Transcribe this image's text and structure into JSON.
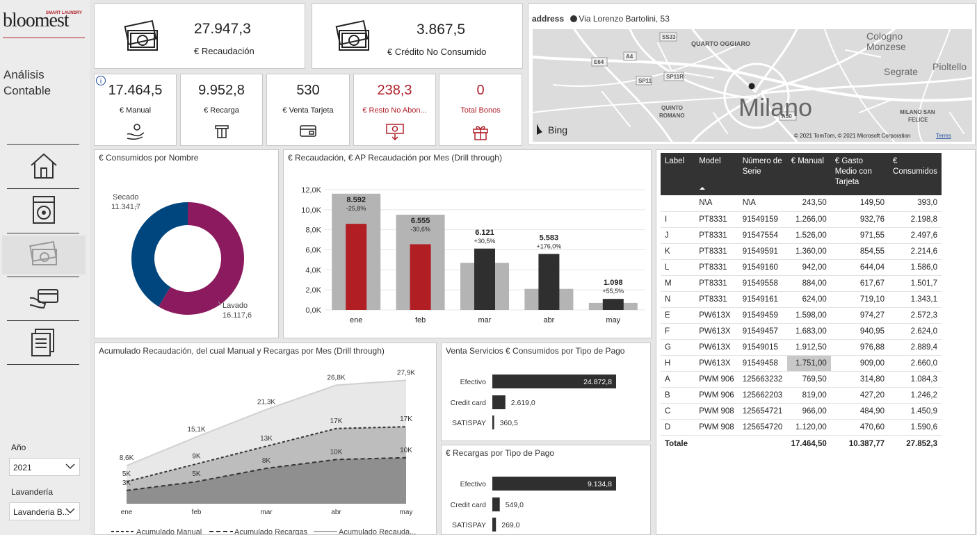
{
  "brand": {
    "name": "bloomest",
    "tagline": "SMART LAUNDRY"
  },
  "app_title": [
    "Análisis",
    "Contable"
  ],
  "nav": [
    {
      "name": "home",
      "active": false
    },
    {
      "name": "washer",
      "active": false
    },
    {
      "name": "money",
      "active": true
    },
    {
      "name": "card",
      "active": false
    },
    {
      "name": "reports",
      "active": false
    }
  ],
  "filters": {
    "year": {
      "label": "Año",
      "value": "2021"
    },
    "laundry": {
      "label": "Lavandería",
      "value": "Lavanderia B..."
    }
  },
  "kpis_top": [
    {
      "value": "27.947,3",
      "label": "€ Recaudación"
    },
    {
      "value": "3.867,5",
      "label": "€ Crédito No Consumido"
    }
  ],
  "kpis_small": [
    {
      "value": "17.464,5",
      "label": "€ Manual",
      "icon": "hand-coin-icon",
      "red": false
    },
    {
      "value": "9.952,8",
      "label": "€ Recarga",
      "icon": "card-slot-icon",
      "red": false
    },
    {
      "value": "530",
      "label": "€ Venta Tarjeta",
      "icon": "card-icon",
      "red": false
    },
    {
      "value": "238,3",
      "label": "€ Resto No Abon...",
      "icon": "money-download-icon",
      "red": true
    },
    {
      "value": "0",
      "label": "Total Bonos",
      "icon": "gift-icon",
      "red": true
    }
  ],
  "map": {
    "label": "address",
    "address": "Via Lorenzo Bartolini, 53",
    "city": "Milano",
    "places": [
      "Cologno",
      "Monzese",
      "Segrate",
      "Pioltello",
      "QUARTO OGGIARO",
      "QUINTO",
      "ROMANO",
      "MILANO SAN",
      "FELICE"
    ],
    "roads": [
      "SS33",
      "A4",
      "E64",
      "SP11R",
      "SP11",
      "A50"
    ],
    "provider": "Bing",
    "copyright": "© 2021 TomTom, © 2021 Microsoft Corporation",
    "terms": "Terms"
  },
  "donut": {
    "title": "€ Consumidos por Nombre",
    "labels": [
      {
        "name": "Secado",
        "value": "11.341,7"
      },
      {
        "name": "Lavado",
        "value": "16.117,6"
      }
    ],
    "colors": [
      "#00467e",
      "#8c1a5e"
    ]
  },
  "bar_title": "€ Recaudación, € AP Recaudación por Mes (Drill through)",
  "area_title": "Acumulado Recaudación, del cual Manual y Recargas por Mes (Drill through)",
  "servicios_title": "Venta Servicios € Consumidos por Tipo de Pago",
  "recargas_title": "€ Recargas por Tipo de Pago",
  "chart_data": [
    {
      "type": "bar",
      "title": "€ Recaudación, € AP Recaudación por Mes (Drill through)",
      "categories": [
        "ene",
        "feb",
        "mar",
        "abr",
        "may"
      ],
      "series": [
        {
          "name": "€ AP Recaudación",
          "values": [
            11600,
            9500,
            4700,
            2100,
            700
          ]
        },
        {
          "name": "€ Recaudación",
          "values": [
            8592,
            6555,
            6121,
            5583,
            1098
          ]
        }
      ],
      "bar_labels": [
        "8.592",
        "6.555",
        "6.121",
        "5.583",
        "1.098"
      ],
      "delta_labels": [
        "-25,8%",
        "-30,6%",
        "+30,5%",
        "+176,0%",
        "+55,5%"
      ],
      "highlight": [
        true,
        true,
        false,
        false,
        false
      ],
      "yticks": [
        "0,0K",
        "2,0K",
        "4,0K",
        "6,0K",
        "8,0K",
        "10,0K",
        "12,0K"
      ],
      "ylim": [
        0,
        12000
      ]
    },
    {
      "type": "area",
      "title": "Acumulado Recaudación, del cual Manual y Recargas por Mes (Drill through)",
      "categories": [
        "ene",
        "feb",
        "mar",
        "abr",
        "may"
      ],
      "series": [
        {
          "name": "Acumulado Recauda...",
          "values": [
            8.6,
            15.1,
            21.3,
            26.8,
            27.9
          ],
          "labels": [
            "8,6K",
            "15,1K",
            "21,3K",
            "26,8K",
            "27,9K"
          ]
        },
        {
          "name": "Acumulado Manual",
          "values": [
            5,
            9,
            13,
            17,
            17.4
          ],
          "labels": [
            "5K",
            "9K",
            "13K",
            "17K",
            "17K"
          ]
        },
        {
          "name": "Acumulado Recargas",
          "values": [
            3,
            5,
            8,
            10,
            10.4
          ],
          "labels": [
            "3K",
            "5K",
            "8K",
            "10K",
            "10K"
          ]
        }
      ],
      "ylim": [
        0,
        30
      ]
    },
    {
      "type": "bar",
      "orientation": "horizontal",
      "title": "Venta Servicios € Consumidos por Tipo de Pago",
      "categories": [
        "Efectivo",
        "Credit card",
        "SATISPAY"
      ],
      "values": [
        24872.8,
        2619.0,
        360.5
      ],
      "labels": [
        "24.872,8",
        "2.619,0",
        "360,5"
      ]
    },
    {
      "type": "bar",
      "orientation": "horizontal",
      "title": "€ Recargas por Tipo de Pago",
      "categories": [
        "Efectivo",
        "Credit card",
        "SATISPAY"
      ],
      "values": [
        9134.8,
        549.0,
        269.0
      ],
      "labels": [
        "9.134,8",
        "549,0",
        "269,0"
      ]
    }
  ],
  "table": {
    "columns": [
      "Label",
      "Model",
      "Número de Serie",
      "€ Manual",
      "€ Gasto Medio con Tarjeta",
      "€ Consumidos"
    ],
    "rows": [
      [
        "",
        "N\\A",
        "N\\A",
        "243,50",
        "149,50",
        "393,0"
      ],
      [
        "I",
        "PT8331",
        "91549159",
        "1.266,00",
        "932,76",
        "2.198,8"
      ],
      [
        "J",
        "PT8331",
        "91547554",
        "1.526,00",
        "971,55",
        "2.497,6"
      ],
      [
        "K",
        "PT8331",
        "91549591",
        "1.360,00",
        "854,55",
        "2.214,6"
      ],
      [
        "L",
        "PT8331",
        "91549160",
        "942,00",
        "644,04",
        "1.586,0"
      ],
      [
        "M",
        "PT8331",
        "91549558",
        "884,00",
        "617,67",
        "1.501,7"
      ],
      [
        "N",
        "PT8331",
        "91549161",
        "624,00",
        "719,10",
        "1.343,1"
      ],
      [
        "E",
        "PW613X",
        "91549459",
        "1.598,00",
        "974,27",
        "2.572,3"
      ],
      [
        "F",
        "PW613X",
        "91549457",
        "1.683,00",
        "940,95",
        "2.624,0"
      ],
      [
        "G",
        "PW613X",
        "91549015",
        "1.912,50",
        "976,88",
        "2.889,4"
      ],
      [
        "H",
        "PW613X",
        "91549458",
        "1.751,00",
        "909,00",
        "2.660,0"
      ],
      [
        "A",
        "PWM 906",
        "125663232",
        "769,50",
        "314,80",
        "1.084,3"
      ],
      [
        "B",
        "PWM 906",
        "125662203",
        "819,00",
        "427,20",
        "1.246,2"
      ],
      [
        "C",
        "PWM 908",
        "125654721",
        "966,00",
        "484,90",
        "1.450,9"
      ],
      [
        "D",
        "PWM 908",
        "125654720",
        "1.120,00",
        "470,60",
        "1.590,6"
      ]
    ],
    "highlight_row": 10,
    "total": [
      "Totale",
      "",
      "",
      "17.464,50",
      "10.387,77",
      "27.852,3"
    ]
  }
}
